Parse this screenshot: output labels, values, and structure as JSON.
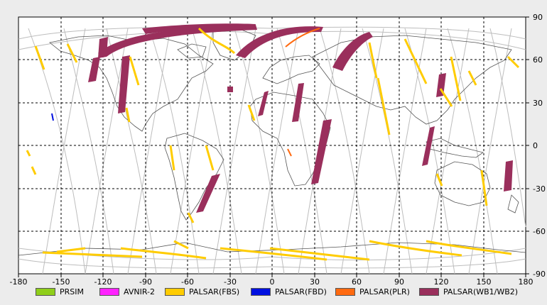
{
  "map": {
    "x_ticks": [
      "-180",
      "-150",
      "-120",
      "-90",
      "-60",
      "-30",
      "0",
      "30",
      "60",
      "90",
      "120",
      "150",
      "180"
    ],
    "y_ticks": [
      "90",
      "60",
      "30",
      "0",
      "-30",
      "-60",
      "-90"
    ]
  },
  "legend": [
    {
      "label": "PRSIM",
      "color": "#8fce1a"
    },
    {
      "label": "AVNIR-2",
      "color": "#ff22ff"
    },
    {
      "label": "PALSAR(FBS)",
      "color": "#ffcc00"
    },
    {
      "label": "PALSAR(FBD)",
      "color": "#0010e0"
    },
    {
      "label": "PALSAR(PLR)",
      "color": "#ff6a10"
    },
    {
      "label": "PALSAR(WB1/WB2)",
      "color": "#9a2f5c"
    }
  ]
}
